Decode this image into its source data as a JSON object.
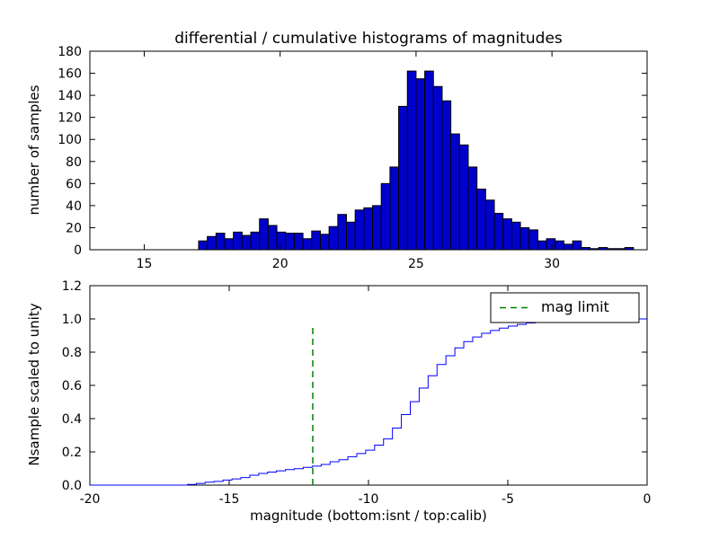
{
  "figure": {
    "background": "#ffffff"
  },
  "chart_data": [
    {
      "type": "bar",
      "name": "differential-histogram-top",
      "title": "differential / cumulative histograms of magnitudes",
      "ylabel": "number of samples",
      "bar_color": "#0000cc",
      "bar_edge_color": "#000000",
      "bin_start": 17.0,
      "bin_width": 0.32,
      "heights": [
        8,
        12,
        15,
        10,
        16,
        13,
        16,
        28,
        22,
        16,
        15,
        15,
        10,
        17,
        14,
        21,
        32,
        25,
        36,
        38,
        40,
        60,
        75,
        130,
        162,
        155,
        162,
        148,
        135,
        105,
        95,
        75,
        55,
        45,
        33,
        28,
        25,
        20,
        18,
        8,
        10,
        8,
        5,
        8,
        2,
        1,
        2,
        1,
        1,
        2
      ],
      "xlim": [
        13,
        33.5
      ],
      "ylim": [
        0,
        180
      ],
      "xticks": [
        15,
        20,
        25,
        30
      ],
      "yticks": [
        0,
        20,
        40,
        60,
        80,
        100,
        120,
        140,
        160,
        180
      ]
    },
    {
      "type": "line",
      "name": "cumulative-histogram-bottom",
      "style": "cumulative-step",
      "xlabel": "magnitude (bottom:isnt / top:calib)",
      "ylabel": "Nsample scaled to unity",
      "line_color": "#0000ff",
      "x_offset_from_top": -33.5,
      "xlim": [
        -20,
        0
      ],
      "ylim": [
        0,
        1.2
      ],
      "xticks": [
        -20,
        -15,
        -10,
        -5,
        0
      ],
      "yticks": [
        0,
        0.2,
        0.4,
        0.6,
        0.8,
        1,
        1.2
      ],
      "mag_limit": {
        "x": -12,
        "y_top": 0.965,
        "color": "#008000",
        "label": "mag limit"
      },
      "legend": {
        "label": "mag limit",
        "position": "upper right"
      }
    }
  ]
}
